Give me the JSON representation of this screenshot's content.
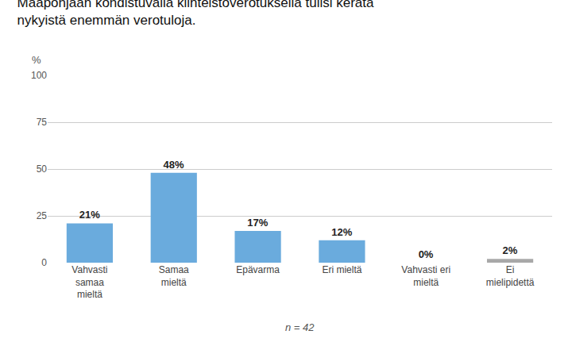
{
  "chart_data": {
    "type": "bar",
    "title": "Maapohjaan kohdistuvalla kiinteistöverotuksella tulisi kerätä\nnykyistä enemmän verotuloja.",
    "ylabel": "%",
    "categories": [
      "Vahvasti\nsamaa\nmieltä",
      "Samaa\nmieltä",
      "Epävarma",
      "Eri mieltä",
      "Vahvasti eri\nmieltä",
      "Ei\nmielipidettä"
    ],
    "values": [
      21,
      48,
      17,
      12,
      0,
      2
    ],
    "value_labels": [
      "21%",
      "48%",
      "17%",
      "12%",
      "0%",
      "2%"
    ],
    "colors": [
      "#6aabdd",
      "#6aabdd",
      "#6aabdd",
      "#6aabdd",
      "#6aabdd",
      "#a8a8a8"
    ],
    "ylim": [
      0,
      100
    ],
    "yticks": [
      0,
      25,
      50,
      75,
      100
    ],
    "grid": true,
    "data_labels": true,
    "annotations": [
      "n = 42"
    ]
  }
}
